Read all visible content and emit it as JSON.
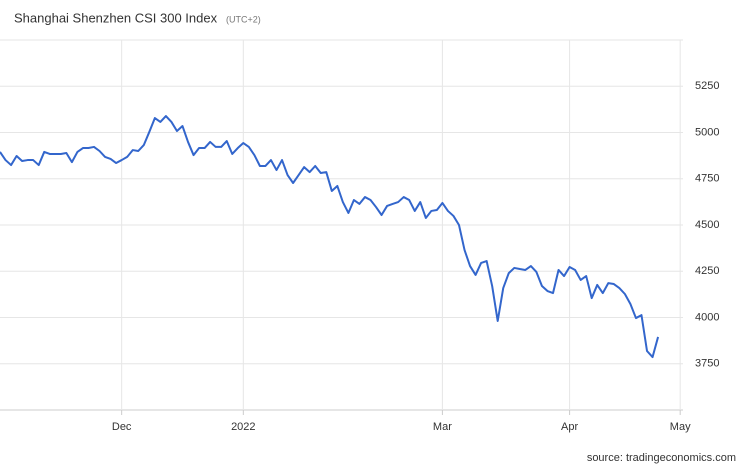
{
  "chart_data": {
    "type": "line",
    "title": "Shanghai Shenzhen CSI 300 Index",
    "subtitle": "(UTC+2)",
    "source": "source: tradingeconomics.com",
    "color": "#3366cc",
    "grid": true,
    "categories": [
      null,
      null,
      null,
      null,
      null,
      null,
      null,
      null,
      null,
      null,
      null,
      null,
      null,
      null,
      null,
      null,
      null,
      null,
      null,
      null,
      null,
      null,
      "Dec",
      null,
      null,
      null,
      null,
      null,
      null,
      null,
      null,
      null,
      null,
      null,
      null,
      null,
      null,
      null,
      null,
      null,
      null,
      null,
      null,
      null,
      "2022",
      null,
      null,
      null,
      null,
      null,
      null,
      null,
      null,
      null,
      null,
      null,
      null,
      null,
      null,
      null,
      null,
      null,
      null,
      null,
      null,
      null,
      null,
      null,
      null,
      null,
      null,
      null,
      null,
      null,
      null,
      null,
      null,
      null,
      null,
      null,
      "Mar",
      null,
      null,
      null,
      null,
      null,
      null,
      null,
      null,
      null,
      null,
      null,
      null,
      null,
      null,
      null,
      null,
      null,
      null,
      null,
      null,
      null,
      null,
      "Apr",
      null,
      null,
      null,
      null,
      null,
      null,
      null,
      null,
      null,
      null,
      null,
      null,
      null,
      null,
      null,
      null,
      null,
      null,
      null,
      "May"
    ],
    "values": [
      4895,
      4851,
      4824,
      4873,
      4846,
      4851,
      4851,
      4824,
      4895,
      4884,
      4884,
      4884,
      4889,
      4840,
      4895,
      4916,
      4916,
      4922,
      4900,
      4868,
      4857,
      4835,
      4851,
      4868,
      4905,
      4900,
      4932,
      5003,
      5078,
      5057,
      5089,
      5057,
      5008,
      5035,
      4949,
      4878,
      4916,
      4916,
      4949,
      4922,
      4922,
      4954,
      4884,
      4916,
      4943,
      4922,
      4878,
      4819,
      4819,
      4851,
      4797,
      4851,
      4770,
      4727,
      4770,
      4813,
      4786,
      4819,
      4781,
      4786,
      4684,
      4711,
      4624,
      4565,
      4635,
      4614,
      4651,
      4635,
      4597,
      4554,
      4603,
      4614,
      4624,
      4651,
      4635,
      4576,
      4624,
      4538,
      4576,
      4581,
      4619,
      4576,
      4549,
      4500,
      4365,
      4278,
      4230,
      4295,
      4305,
      4170,
      3981,
      4159,
      4240,
      4268,
      4262,
      4257,
      4278,
      4246,
      4170,
      4143,
      4132,
      4257,
      4224,
      4273,
      4257,
      4203,
      4224,
      4105,
      4176,
      4132,
      4186,
      4181,
      4159,
      4127,
      4073,
      3997,
      4013,
      3819,
      3786,
      3895,
      null,
      null,
      null,
      null
    ],
    "ylim": [
      3500,
      5500
    ],
    "yticks": [
      3750,
      4000,
      4250,
      4500,
      4750,
      5000,
      5250
    ]
  }
}
